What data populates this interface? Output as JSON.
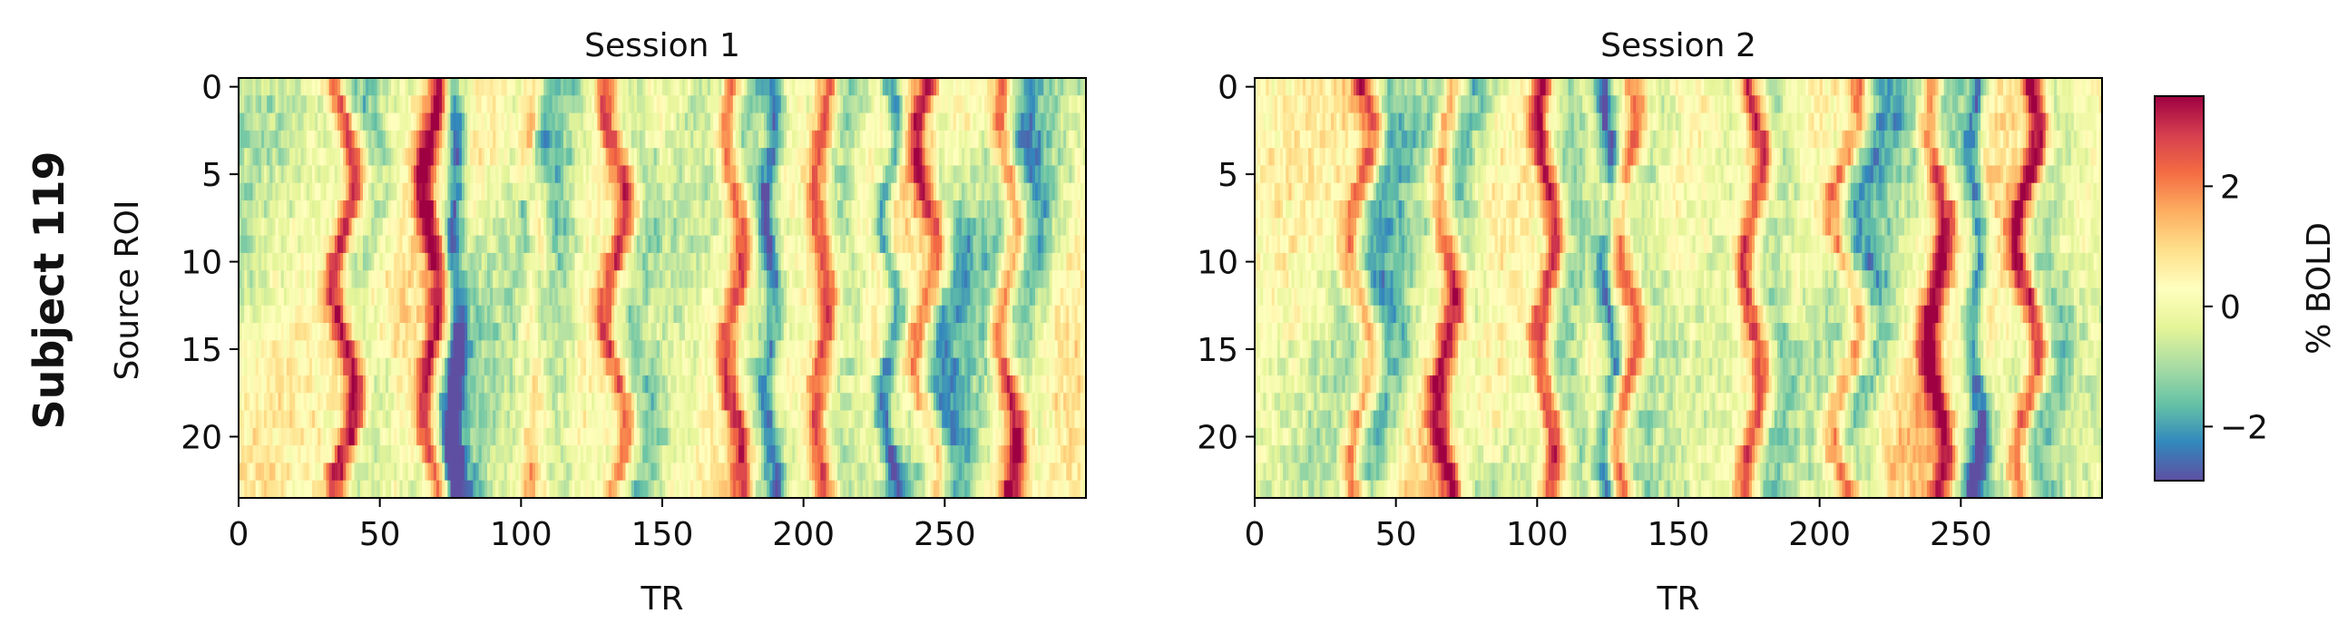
{
  "figure": {
    "row_label": "Subject 119"
  },
  "chart_data": [
    {
      "type": "heatmap",
      "title": "Session 1",
      "xlabel": "TR",
      "ylabel": "Source ROI",
      "x_range": [
        0,
        299
      ],
      "y_range": [
        0,
        23
      ],
      "n_rows": 24,
      "n_cols": 300,
      "xticks": [
        "0",
        "50",
        "100",
        "150",
        "200",
        "250"
      ],
      "yticks": [
        "0",
        "5",
        "10",
        "15",
        "20"
      ],
      "colormap": "Spectral_r",
      "value_range": [
        -2.9,
        3.5
      ],
      "dominant_peak_TRs": [
        {
          "TR": 37,
          "drift": 4
        },
        {
          "TR": 68,
          "drift": 3
        },
        {
          "TR": 104,
          "drift": 1
        },
        {
          "TR": 133,
          "drift": 4
        },
        {
          "TR": 175,
          "drift": 3
        },
        {
          "TR": 206,
          "drift": 2
        },
        {
          "TR": 243,
          "drift": 4
        },
        {
          "TR": 272,
          "drift": 3
        }
      ],
      "dominant_trough_TRs": [
        {
          "TR": 76,
          "drift": 1
        },
        {
          "TR": 104,
          "drift": 2
        },
        {
          "TR": 188,
          "drift": 2
        },
        {
          "TR": 230,
          "drift": 3
        }
      ]
    },
    {
      "type": "heatmap",
      "title": "Session 2",
      "xlabel": "TR",
      "ylabel": "",
      "x_range": [
        0,
        299
      ],
      "y_range": [
        0,
        23
      ],
      "n_rows": 24,
      "n_cols": 300,
      "xticks": [
        "0",
        "50",
        "100",
        "150",
        "200",
        "250"
      ],
      "yticks": [
        "0",
        "5",
        "10",
        "15",
        "20"
      ],
      "colormap": "Spectral_r",
      "value_range": [
        -2.9,
        3.5
      ],
      "dominant_peak_TRs": [
        {
          "TR": 37,
          "drift": 4
        },
        {
          "TR": 67,
          "drift": 3
        },
        {
          "TR": 103,
          "drift": 3
        },
        {
          "TR": 131,
          "drift": 4
        },
        {
          "TR": 176,
          "drift": 3
        },
        {
          "TR": 209,
          "drift": 5
        },
        {
          "TR": 241,
          "drift": 3
        },
        {
          "TR": 273,
          "drift": 4
        }
      ],
      "dominant_trough_TRs": [
        {
          "TR": 125,
          "drift": 2
        },
        {
          "TR": 255,
          "drift": 2
        }
      ]
    }
  ],
  "colorbar": {
    "label": "% BOLD",
    "range": [
      -2.9,
      3.5
    ],
    "ticks": [
      {
        "value": 2,
        "label": "2"
      },
      {
        "value": 0,
        "label": "0"
      },
      {
        "value": -2,
        "label": "−2"
      }
    ],
    "colors": [
      "#5e4fa2",
      "#3288bd",
      "#66c2a5",
      "#abdda4",
      "#e6f598",
      "#ffffbf",
      "#fee08b",
      "#fdae61",
      "#f46d43",
      "#d53e4f",
      "#9e0142"
    ]
  }
}
